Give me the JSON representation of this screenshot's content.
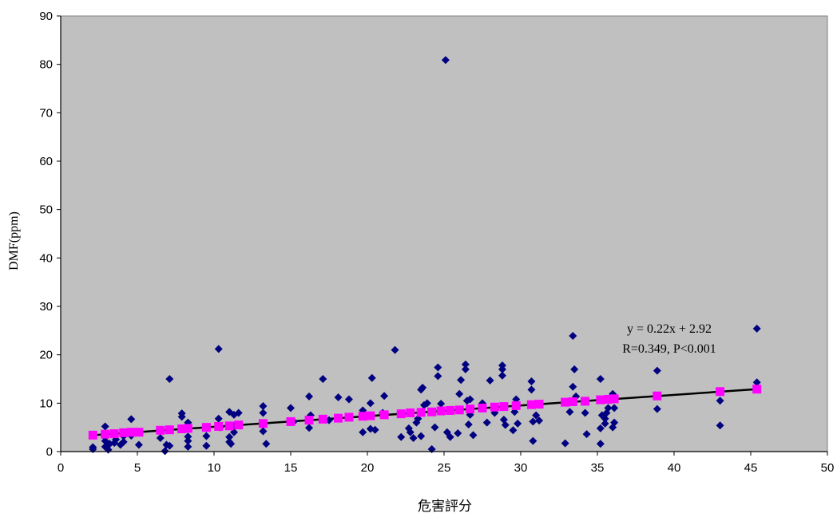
{
  "chart_data": {
    "type": "scatter",
    "title": "",
    "xlabel": "危害評分",
    "ylabel": "DMF(ppm)",
    "xlim": [
      0,
      50
    ],
    "ylim": [
      0,
      90
    ],
    "x_ticks": [
      0,
      5,
      10,
      15,
      20,
      25,
      30,
      35,
      40,
      45,
      50
    ],
    "y_ticks": [
      0,
      10,
      20,
      30,
      40,
      50,
      60,
      70,
      80,
      90
    ],
    "x_tick_labels": [
      "0",
      "5",
      "10",
      "15",
      "20",
      "25",
      "30",
      "35",
      "40",
      "45",
      "50"
    ],
    "y_tick_labels": [
      "0",
      "10",
      "20",
      "30",
      "40",
      "50",
      "60",
      "70",
      "80",
      "90"
    ],
    "grid": false,
    "legend": "none",
    "plot_background": "#c0c0c0",
    "observed": {
      "marker": "diamond",
      "color": "#000080",
      "points": [
        [
          2.1,
          0.5
        ],
        [
          2.1,
          0.9
        ],
        [
          2.9,
          1.0
        ],
        [
          2.9,
          2.2
        ],
        [
          2.9,
          3.0
        ],
        [
          2.9,
          5.2
        ],
        [
          3.1,
          0.4
        ],
        [
          3.2,
          1.6
        ],
        [
          3.5,
          1.8
        ],
        [
          3.6,
          2.5
        ],
        [
          3.9,
          1.4
        ],
        [
          4.1,
          2.0
        ],
        [
          4.1,
          3.2
        ],
        [
          4.6,
          3.3
        ],
        [
          4.6,
          6.7
        ],
        [
          5.1,
          1.4
        ],
        [
          6.5,
          2.8
        ],
        [
          6.8,
          0.1
        ],
        [
          6.9,
          1.4
        ],
        [
          7.1,
          1.2
        ],
        [
          7.1,
          15.0
        ],
        [
          7.9,
          7.2
        ],
        [
          7.9,
          7.9
        ],
        [
          8.3,
          1.0
        ],
        [
          8.3,
          2.2
        ],
        [
          8.3,
          3.1
        ],
        [
          8.3,
          6.0
        ],
        [
          9.5,
          1.2
        ],
        [
          9.5,
          3.2
        ],
        [
          9.5,
          4.8
        ],
        [
          10.3,
          21.2
        ],
        [
          10.3,
          6.8
        ],
        [
          10.4,
          5.0
        ],
        [
          11.0,
          8.2
        ],
        [
          11.0,
          3.0
        ],
        [
          11.0,
          2.0
        ],
        [
          11.1,
          1.6
        ],
        [
          11.3,
          5.3
        ],
        [
          11.3,
          4.0
        ],
        [
          11.3,
          7.6
        ],
        [
          11.6,
          8.0
        ],
        [
          13.2,
          9.4
        ],
        [
          13.2,
          8.0
        ],
        [
          13.2,
          4.2
        ],
        [
          13.4,
          1.6
        ],
        [
          15.0,
          9.0
        ],
        [
          15.2,
          6.2
        ],
        [
          16.2,
          4.9
        ],
        [
          16.2,
          11.4
        ],
        [
          16.3,
          7.5
        ],
        [
          17.1,
          15.0
        ],
        [
          17.5,
          6.5
        ],
        [
          18.1,
          11.2
        ],
        [
          18.8,
          10.8
        ],
        [
          18.8,
          7.0
        ],
        [
          19.7,
          4.0
        ],
        [
          19.7,
          8.5
        ],
        [
          20.2,
          4.7
        ],
        [
          20.2,
          10.0
        ],
        [
          20.3,
          15.2
        ],
        [
          20.5,
          4.5
        ],
        [
          21.0,
          8.0
        ],
        [
          21.1,
          11.5
        ],
        [
          21.8,
          21.0
        ],
        [
          22.2,
          3.0
        ],
        [
          22.7,
          4.8
        ],
        [
          22.8,
          4.0
        ],
        [
          23.0,
          2.8
        ],
        [
          23.2,
          6.0
        ],
        [
          23.3,
          6.8
        ],
        [
          23.5,
          3.2
        ],
        [
          23.5,
          12.8
        ],
        [
          23.6,
          13.2
        ],
        [
          23.7,
          9.6
        ],
        [
          23.9,
          10.0
        ],
        [
          24.2,
          0.5
        ],
        [
          24.4,
          5.0
        ],
        [
          24.6,
          17.4
        ],
        [
          24.6,
          15.6
        ],
        [
          24.8,
          9.9
        ],
        [
          25.2,
          4.0
        ],
        [
          25.4,
          3.0
        ],
        [
          25.1,
          80.9
        ],
        [
          25.9,
          3.8
        ],
        [
          26.0,
          11.9
        ],
        [
          26.1,
          14.8
        ],
        [
          26.4,
          17.0
        ],
        [
          26.4,
          18.0
        ],
        [
          26.5,
          10.5
        ],
        [
          26.7,
          10.8
        ],
        [
          26.6,
          5.6
        ],
        [
          26.7,
          7.6
        ],
        [
          26.9,
          3.4
        ],
        [
          27.5,
          10.0
        ],
        [
          27.8,
          6.0
        ],
        [
          28.0,
          14.7
        ],
        [
          28.3,
          8.0
        ],
        [
          28.8,
          17.8
        ],
        [
          28.8,
          17.0
        ],
        [
          28.8,
          15.7
        ],
        [
          28.9,
          6.6
        ],
        [
          29.0,
          5.5
        ],
        [
          29.5,
          4.4
        ],
        [
          29.6,
          8.2
        ],
        [
          29.7,
          10.8
        ],
        [
          29.8,
          5.8
        ],
        [
          30.7,
          14.5
        ],
        [
          30.7,
          12.8
        ],
        [
          30.8,
          6.2
        ],
        [
          30.8,
          2.2
        ],
        [
          31.0,
          7.5
        ],
        [
          31.2,
          6.4
        ],
        [
          32.9,
          1.7
        ],
        [
          33.2,
          8.2
        ],
        [
          33.4,
          13.4
        ],
        [
          33.5,
          17.0
        ],
        [
          33.4,
          23.9
        ],
        [
          33.6,
          11.4
        ],
        [
          34.2,
          8.0
        ],
        [
          34.3,
          3.6
        ],
        [
          35.2,
          1.6
        ],
        [
          35.2,
          4.8
        ],
        [
          35.2,
          15.0
        ],
        [
          35.3,
          7.5
        ],
        [
          35.5,
          5.8
        ],
        [
          35.5,
          6.8
        ],
        [
          35.6,
          8.0
        ],
        [
          35.7,
          9.0
        ],
        [
          36.0,
          5.0
        ],
        [
          36.0,
          11.9
        ],
        [
          36.1,
          6.0
        ],
        [
          36.1,
          9.0
        ],
        [
          38.9,
          16.7
        ],
        [
          38.9,
          8.8
        ],
        [
          43.0,
          10.5
        ],
        [
          43.0,
          5.4
        ],
        [
          45.4,
          25.4
        ],
        [
          45.4,
          14.3
        ]
      ]
    },
    "predicted": {
      "marker": "square",
      "color": "#ff00ff",
      "points": [
        [
          2.1,
          3.4
        ],
        [
          2.9,
          3.6
        ],
        [
          3.5,
          3.7
        ],
        [
          4.1,
          3.9
        ],
        [
          4.6,
          4.0
        ],
        [
          5.1,
          4.0
        ],
        [
          6.5,
          4.4
        ],
        [
          7.1,
          4.5
        ],
        [
          7.9,
          4.7
        ],
        [
          8.3,
          4.8
        ],
        [
          9.5,
          5.0
        ],
        [
          10.3,
          5.2
        ],
        [
          11.0,
          5.3
        ],
        [
          11.6,
          5.5
        ],
        [
          13.2,
          5.8
        ],
        [
          15.0,
          6.2
        ],
        [
          16.2,
          6.5
        ],
        [
          17.1,
          6.7
        ],
        [
          18.1,
          6.9
        ],
        [
          18.8,
          7.1
        ],
        [
          19.7,
          7.3
        ],
        [
          20.2,
          7.4
        ],
        [
          21.1,
          7.6
        ],
        [
          22.2,
          7.8
        ],
        [
          22.8,
          8.0
        ],
        [
          23.5,
          8.1
        ],
        [
          24.2,
          8.2
        ],
        [
          24.8,
          8.4
        ],
        [
          25.4,
          8.5
        ],
        [
          26.0,
          8.6
        ],
        [
          26.7,
          8.8
        ],
        [
          27.5,
          9.0
        ],
        [
          28.3,
          9.2
        ],
        [
          28.9,
          9.3
        ],
        [
          29.7,
          9.5
        ],
        [
          30.7,
          9.7
        ],
        [
          31.2,
          9.8
        ],
        [
          32.9,
          10.2
        ],
        [
          33.4,
          10.3
        ],
        [
          34.2,
          10.4
        ],
        [
          35.2,
          10.7
        ],
        [
          35.7,
          10.8
        ],
        [
          36.1,
          10.9
        ],
        [
          38.9,
          11.5
        ],
        [
          43.0,
          12.4
        ],
        [
          45.4,
          12.9
        ]
      ]
    },
    "trendline": {
      "slope": 0.22,
      "intercept": 2.92,
      "x_range": [
        2.1,
        45.4
      ],
      "color": "#000000",
      "equation": "y = 0.22x + 2.92",
      "stats": "R=0.349, P<0.001"
    }
  }
}
